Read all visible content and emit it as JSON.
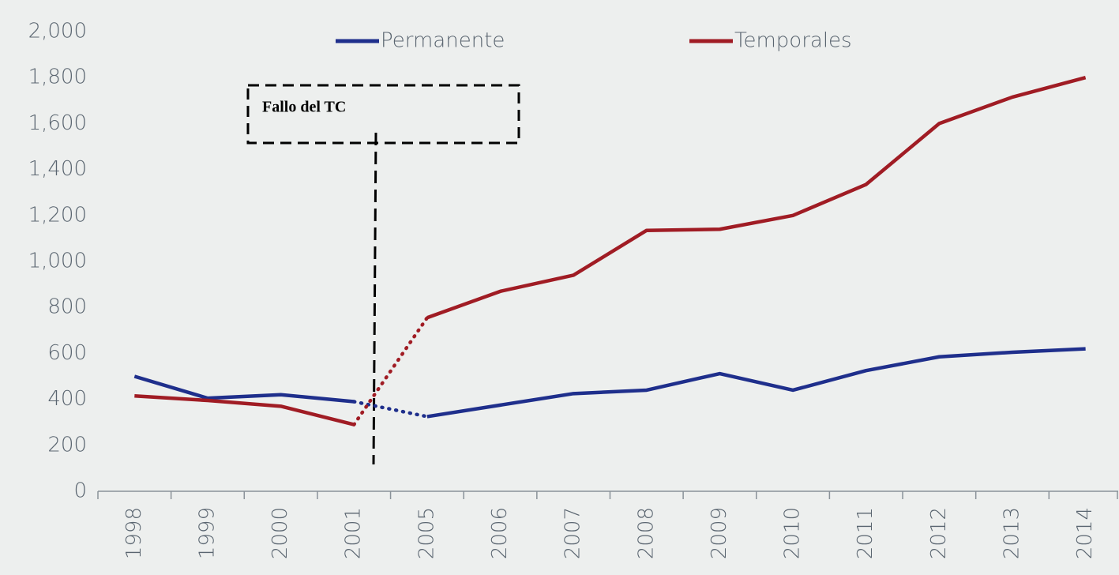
{
  "chart_data": {
    "type": "line",
    "categories": [
      "1998",
      "1999",
      "2000",
      "2001",
      "2005",
      "2006",
      "2007",
      "2008",
      "2009",
      "2010",
      "2011",
      "2012",
      "2013",
      "2014"
    ],
    "series": [
      {
        "name": "Permanente",
        "color": "#1f2f8c",
        "values": [
          500,
          405,
          420,
          390,
          325,
          375,
          425,
          440,
          512,
          440,
          525,
          585,
          605,
          620
        ]
      },
      {
        "name": "Temporales",
        "color": "#a01c24",
        "values": [
          415,
          395,
          370,
          290,
          755,
          870,
          940,
          1135,
          1140,
          1200,
          1335,
          1600,
          1715,
          1800
        ]
      }
    ],
    "ylim": [
      0,
      2000
    ],
    "yticks": [
      0,
      200,
      400,
      600,
      800,
      {
        "value": 1000,
        "label": "1,000"
      },
      {
        "value": 1200,
        "label": "1,200"
      },
      {
        "value": 1400,
        "label": "1,400"
      },
      {
        "value": 1600,
        "label": "1,600"
      },
      {
        "value": 1800,
        "label": "1,800"
      },
      {
        "value": 2000,
        "label": "2,000"
      }
    ],
    "annotation": "Fallo del TC",
    "legend": "top"
  }
}
